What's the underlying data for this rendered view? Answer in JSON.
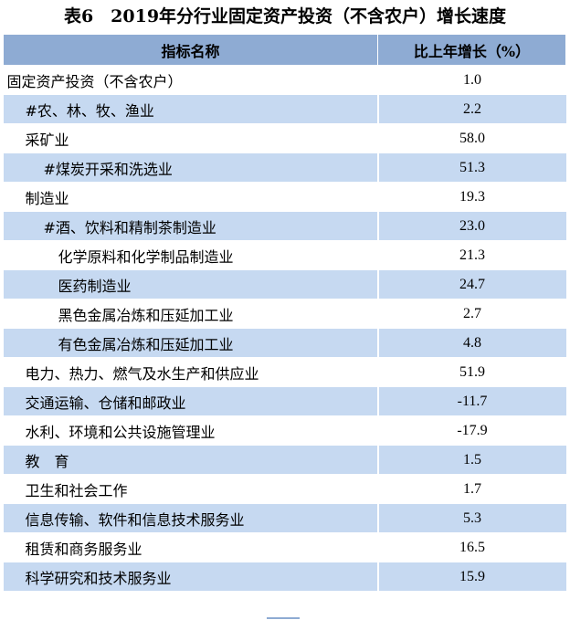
{
  "title": "表6　2019年分行业固定资产投资（不含农户）增长速度",
  "header": {
    "col_name": "指标名称",
    "col_value": "比上年增长（%）"
  },
  "rows": [
    {
      "name": "固定资产投资（不含农户）",
      "value": "1.0"
    },
    {
      "name": "#农、林、牧、渔业",
      "value": "2.2"
    },
    {
      "name": "采矿业",
      "value": "58.0"
    },
    {
      "name": "#煤炭开采和洗选业",
      "value": "51.3"
    },
    {
      "name": "制造业",
      "value": "19.3"
    },
    {
      "name": "#酒、饮料和精制茶制造业",
      "value": "23.0"
    },
    {
      "name": "化学原料和化学制品制造业",
      "value": "21.3"
    },
    {
      "name": "医药制造业",
      "value": "24.7"
    },
    {
      "name": "黑色金属冶炼和压延加工业",
      "value": "2.7"
    },
    {
      "name": "有色金属冶炼和压延加工业",
      "value": "4.8"
    },
    {
      "name": "电力、热力、燃气及水生产和供应业",
      "value": "51.9"
    },
    {
      "name": "交通运输、仓储和邮政业",
      "value": "-11.7"
    },
    {
      "name": "水利、环境和公共设施管理业",
      "value": "-17.9"
    },
    {
      "name": "教　育",
      "value": "1.5"
    },
    {
      "name": "卫生和社会工作",
      "value": "1.7"
    },
    {
      "name": "信息传输、软件和信息技术服务业",
      "value": "5.3"
    },
    {
      "name": "租赁和商务服务业",
      "value": "16.5"
    },
    {
      "name": "科学研究和技术服务业",
      "value": "15.9"
    }
  ],
  "colors": {
    "header_bg": "#8eabd3",
    "stripe_bg": "#c6d9f1"
  }
}
